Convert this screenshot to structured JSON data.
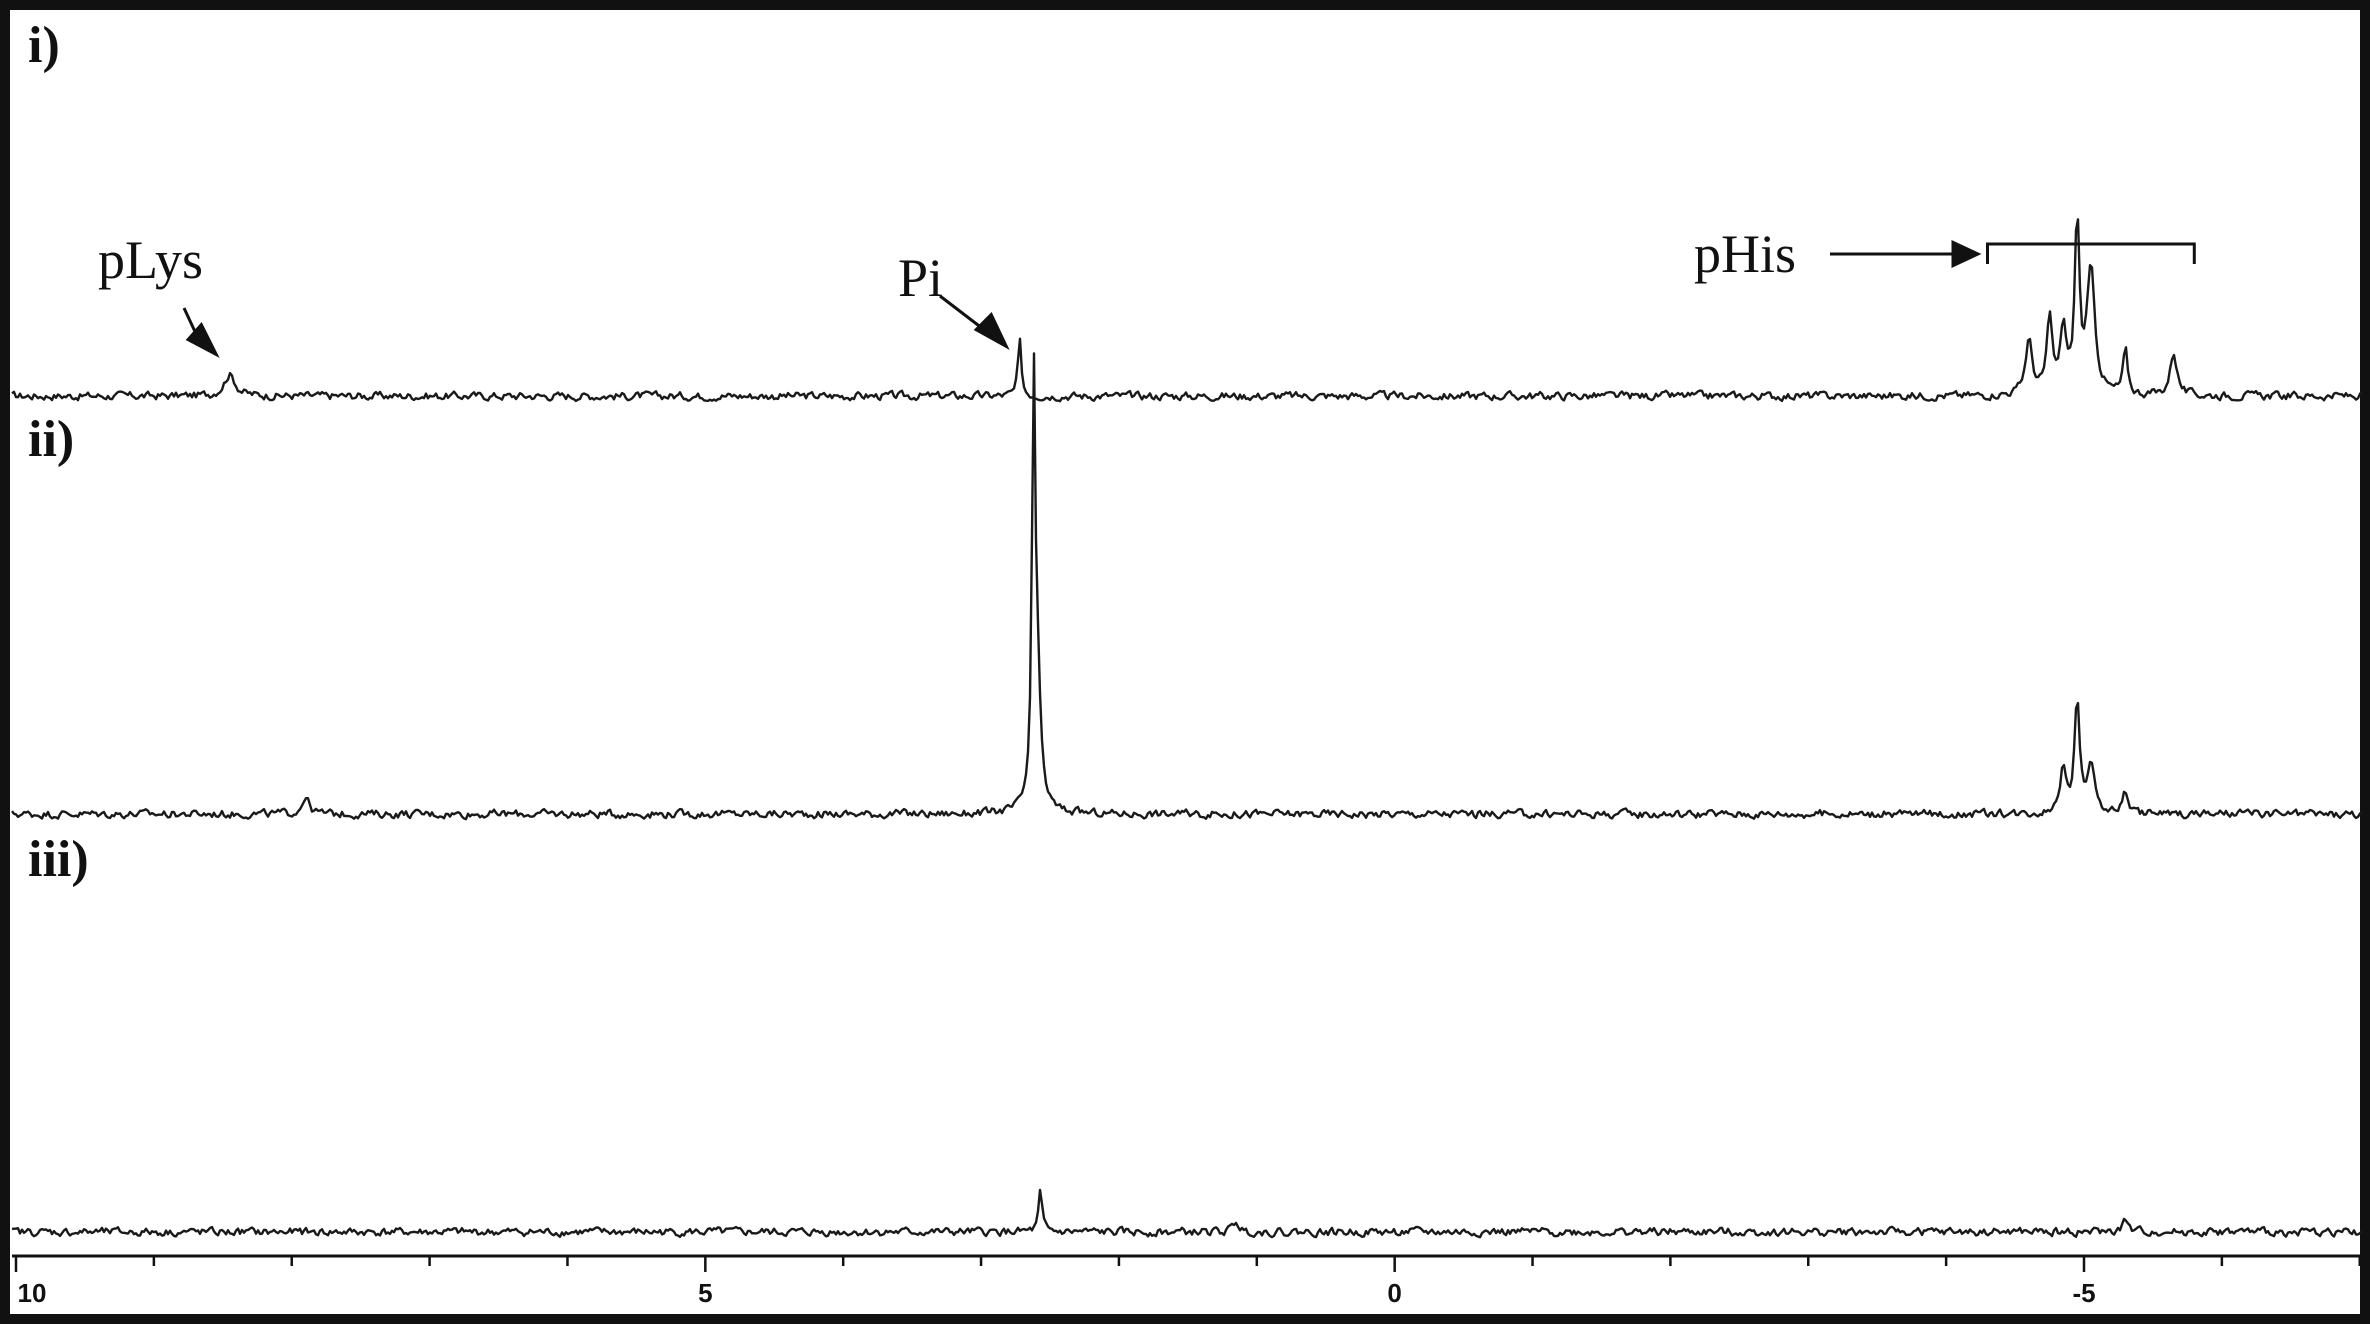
{
  "chart_data": {
    "type": "line",
    "xlabel": "",
    "ylabel": "",
    "xlim": [
      10,
      -7
    ],
    "x_ticks": [
      {
        "value": 10,
        "label": "10"
      },
      {
        "value": 5,
        "label": "5"
      },
      {
        "value": 0,
        "label": "0"
      },
      {
        "value": -5,
        "label": "-5"
      }
    ],
    "minor_tick_step": 1,
    "grid": false,
    "panels": [
      {
        "label": "i)",
        "noise": 0.035,
        "peaks": [
          {
            "ppm": 8.45,
            "height": 0.06,
            "width": 0.1
          },
          {
            "ppm": 2.72,
            "height": 0.15,
            "width": 0.03
          },
          {
            "ppm": -4.6,
            "height": 0.15,
            "width": 0.06
          },
          {
            "ppm": -4.75,
            "height": 0.2,
            "width": 0.05
          },
          {
            "ppm": -4.85,
            "height": 0.18,
            "width": 0.05
          },
          {
            "ppm": -4.95,
            "height": 0.48,
            "width": 0.04
          },
          {
            "ppm": -5.05,
            "height": 0.34,
            "width": 0.07
          },
          {
            "ppm": -5.3,
            "height": 0.12,
            "width": 0.04
          },
          {
            "ppm": -5.65,
            "height": 0.12,
            "width": 0.06
          }
        ],
        "annotations": [
          {
            "text": "pLys",
            "ppm": 8.45
          },
          {
            "text": "Pi",
            "ppm": 2.72
          },
          {
            "text": "pHis",
            "ppm_range": [
              -4.3,
              -5.8
            ]
          }
        ]
      },
      {
        "label": "ii)",
        "noise": 0.035,
        "peaks": [
          {
            "ppm": 7.9,
            "height": 0.05,
            "width": 0.06
          },
          {
            "ppm": 2.62,
            "height": 1.0,
            "width": 0.022
          },
          {
            "ppm": 2.6,
            "height": 0.5,
            "width": 0.06
          },
          {
            "ppm": -4.85,
            "height": 0.12,
            "width": 0.06
          },
          {
            "ppm": -4.95,
            "height": 0.3,
            "width": 0.045
          },
          {
            "ppm": -5.05,
            "height": 0.12,
            "width": 0.07
          },
          {
            "ppm": -5.3,
            "height": 0.06,
            "width": 0.05
          }
        ],
        "annotations": []
      },
      {
        "label": "iii)",
        "noise": 0.035,
        "peaks": [
          {
            "ppm": 2.57,
            "height": 0.11,
            "width": 0.03
          },
          {
            "ppm": 1.15,
            "height": 0.03,
            "width": 0.05
          },
          {
            "ppm": -5.3,
            "height": 0.03,
            "width": 0.05
          }
        ],
        "annotations": []
      }
    ]
  }
}
